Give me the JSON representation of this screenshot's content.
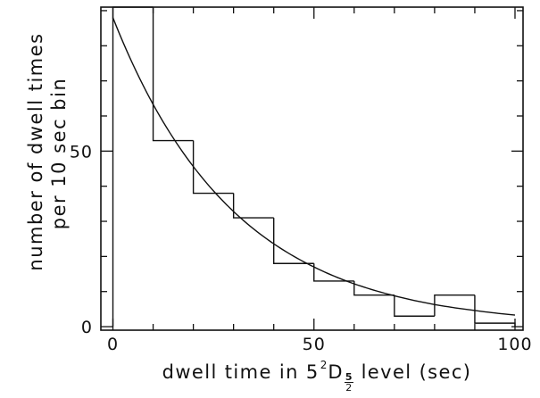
{
  "chart_data": {
    "type": "bar",
    "histogram": {
      "bin_edges": [
        0,
        10,
        20,
        30,
        40,
        50,
        60,
        70,
        80,
        90,
        100
      ],
      "counts": [
        91,
        53,
        38,
        31,
        18,
        13,
        9,
        3,
        9,
        1
      ]
    },
    "curve": {
      "type": "line",
      "x": [
        0,
        10,
        20,
        30,
        40,
        50,
        60,
        70,
        80,
        90,
        100
      ],
      "y": [
        88,
        63.3,
        45.6,
        32.8,
        23.6,
        17.0,
        12.2,
        8.8,
        6.3,
        4.6,
        3.3
      ]
    },
    "xlabel": {
      "before": "dwell time in 5",
      "superscript": "2",
      "symbol": "D",
      "subscript_numerator": "5",
      "subscript_denominator": "2",
      "after": "level (sec)"
    },
    "ylabel": [
      "number of dwell times",
      "per 10 sec bin"
    ],
    "xlim": [
      -3,
      102
    ],
    "ylim": [
      -1,
      91
    ],
    "x_ticks": {
      "major": [
        0,
        50,
        100
      ],
      "labels": [
        "0",
        "50",
        "100"
      ],
      "minor_step": 10
    },
    "y_ticks": {
      "major": [
        0,
        50
      ],
      "labels": [
        "0",
        "50"
      ],
      "minor_step": 10
    },
    "grid": false,
    "legend": "none",
    "colors": {
      "ink": "#111111",
      "background": "#ffffff"
    }
  }
}
